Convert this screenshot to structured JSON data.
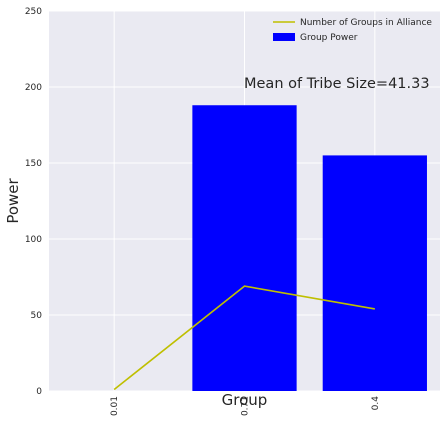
{
  "chart_data": {
    "type": "bar",
    "categories": [
      "0.01",
      "0.71",
      "0.4"
    ],
    "series": [
      {
        "name": "Group Power",
        "kind": "bar",
        "values": [
          0,
          188,
          155
        ],
        "color": "#0000ff"
      },
      {
        "name": "Number of Groups in Alliance",
        "kind": "line",
        "values": [
          1,
          69,
          54
        ],
        "color": "#bfbf00"
      }
    ],
    "xlabel": "Group",
    "ylabel": "Power",
    "ylim": [
      0,
      250
    ],
    "yticks": [
      "0",
      "50",
      "100",
      "150",
      "200",
      "250"
    ],
    "annotation": "Mean of Tribe Size=41.33",
    "legend_position": "top-right",
    "grid": true,
    "background": "#eaeaf2"
  }
}
